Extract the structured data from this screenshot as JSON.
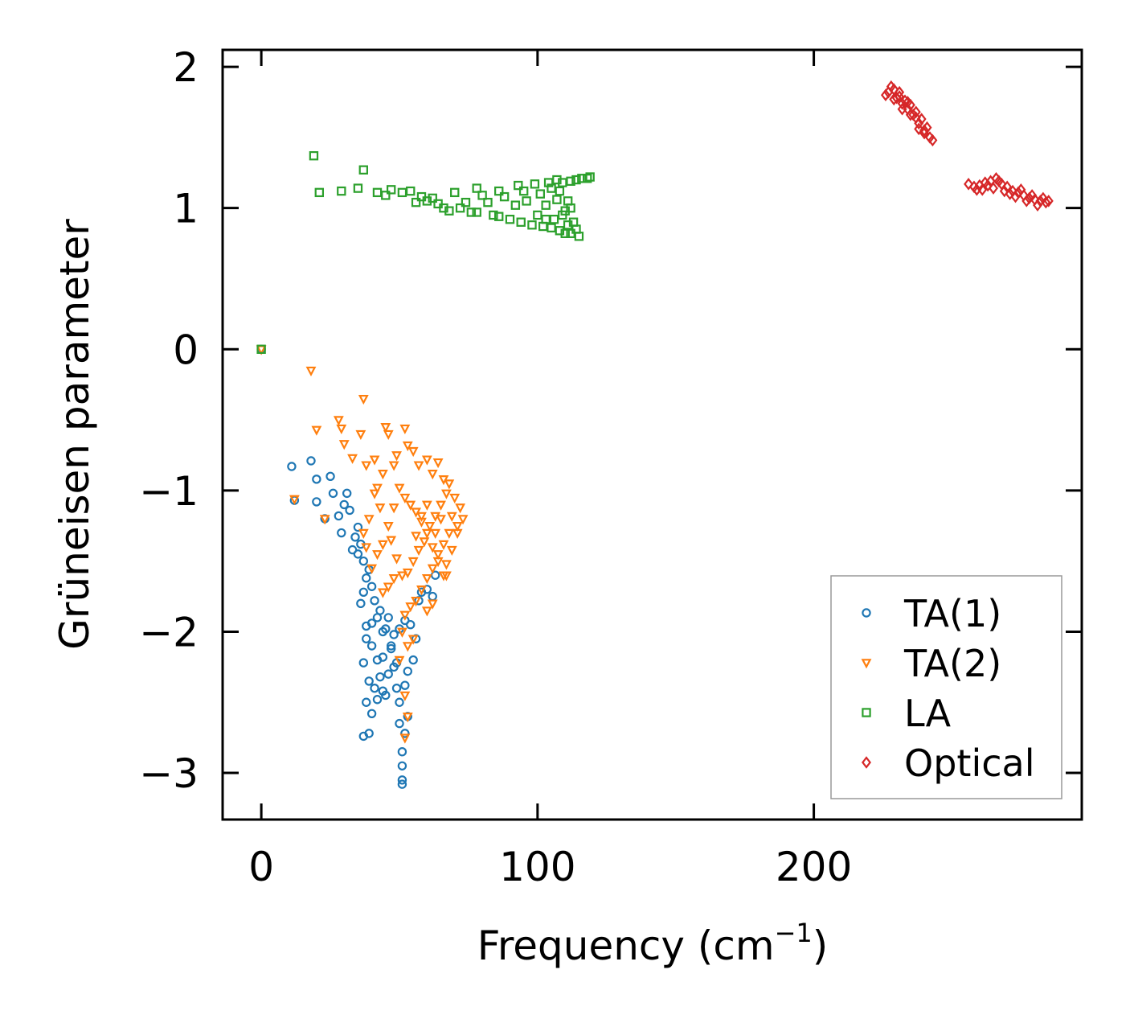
{
  "chart_data": {
    "type": "scatter",
    "title": "",
    "xlabel": "Frequency (cm",
    "xlabel_exponent": "−1",
    "xlabel_close": ")",
    "ylabel": "Grüneisen parameter",
    "xlim": [
      -14,
      297
    ],
    "ylim": [
      -3.33,
      2.12
    ],
    "xticks": [
      0,
      100,
      200
    ],
    "xtick_labels": [
      "0",
      "100",
      "200"
    ],
    "yticks": [
      -3,
      -2,
      -1,
      0,
      1,
      2
    ],
    "ytick_labels": [
      "−3",
      "−2",
      "−1",
      "0",
      "1",
      "2"
    ],
    "legend_position": "lower-right",
    "series": [
      {
        "name": "TA(1)",
        "marker": "circle",
        "color": "#1f77b4",
        "points": [
          [
            0,
            0
          ],
          [
            11,
            -0.83
          ],
          [
            12,
            -1.07
          ],
          [
            18,
            -0.79
          ],
          [
            20,
            -0.92
          ],
          [
            20,
            -1.08
          ],
          [
            23,
            -1.2
          ],
          [
            25,
            -0.9
          ],
          [
            26,
            -1.02
          ],
          [
            28,
            -1.18
          ],
          [
            29,
            -1.3
          ],
          [
            30,
            -1.1
          ],
          [
            31,
            -1.02
          ],
          [
            32,
            -1.14
          ],
          [
            33,
            -1.42
          ],
          [
            34,
            -1.33
          ],
          [
            35,
            -1.26
          ],
          [
            36,
            -1.38
          ],
          [
            35,
            -1.45
          ],
          [
            37,
            -1.5
          ],
          [
            38,
            -1.62
          ],
          [
            37,
            -1.72
          ],
          [
            39,
            -1.56
          ],
          [
            40,
            -1.68
          ],
          [
            36,
            -1.8
          ],
          [
            38,
            -1.96
          ],
          [
            40,
            -1.94
          ],
          [
            42,
            -1.9
          ],
          [
            38,
            -2.05
          ],
          [
            40,
            -2.1
          ],
          [
            42,
            -2.2
          ],
          [
            37,
            -2.22
          ],
          [
            39,
            -2.35
          ],
          [
            41,
            -2.4
          ],
          [
            43,
            -2.32
          ],
          [
            38,
            -2.5
          ],
          [
            40,
            -2.58
          ],
          [
            39,
            -2.72
          ],
          [
            37,
            -2.74
          ],
          [
            44,
            -2.18
          ],
          [
            46,
            -2.3
          ],
          [
            45,
            -2.45
          ],
          [
            47,
            -2.1
          ],
          [
            48,
            -2.25
          ],
          [
            49,
            -2.4
          ],
          [
            50,
            -2.5
          ],
          [
            52,
            -2.38
          ],
          [
            53,
            -2.28
          ],
          [
            48,
            -2.02
          ],
          [
            50,
            -1.98
          ],
          [
            52,
            -1.92
          ],
          [
            54,
            -1.95
          ],
          [
            56,
            -2.05
          ],
          [
            55,
            -2.2
          ],
          [
            50,
            -2.65
          ],
          [
            51,
            -2.85
          ],
          [
            51,
            -2.95
          ],
          [
            51,
            -3.05
          ],
          [
            51,
            -3.08
          ],
          [
            52,
            -2.72
          ],
          [
            53,
            -2.6
          ],
          [
            58,
            -1.72
          ],
          [
            60,
            -1.7
          ],
          [
            62,
            -1.75
          ],
          [
            63,
            -1.6
          ],
          [
            57,
            -1.78
          ],
          [
            44,
            -2.0
          ],
          [
            46,
            -1.9
          ],
          [
            41,
            -1.78
          ],
          [
            43,
            -1.85
          ],
          [
            45,
            -1.98
          ],
          [
            47,
            -2.12
          ],
          [
            49,
            -2.22
          ],
          [
            44,
            -2.42
          ],
          [
            42,
            -2.48
          ]
        ]
      },
      {
        "name": "TA(2)",
        "marker": "triangle-down",
        "color": "#ff7f0e",
        "points": [
          [
            0,
            0
          ],
          [
            12,
            -1.06
          ],
          [
            18,
            -0.15
          ],
          [
            20,
            -0.57
          ],
          [
            23,
            -1.2
          ],
          [
            28,
            -0.5
          ],
          [
            29,
            -0.56
          ],
          [
            30,
            -0.67
          ],
          [
            33,
            -0.77
          ],
          [
            36,
            -0.6
          ],
          [
            37,
            -0.35
          ],
          [
            38,
            -0.82
          ],
          [
            41,
            -0.78
          ],
          [
            42,
            -0.98
          ],
          [
            44,
            -0.88
          ],
          [
            45,
            -0.55
          ],
          [
            46,
            -0.6
          ],
          [
            48,
            -0.82
          ],
          [
            49,
            -0.75
          ],
          [
            52,
            -0.56
          ],
          [
            53,
            -0.68
          ],
          [
            55,
            -0.72
          ],
          [
            57,
            -0.82
          ],
          [
            60,
            -0.78
          ],
          [
            62,
            -0.88
          ],
          [
            64,
            -0.8
          ],
          [
            66,
            -0.92
          ],
          [
            68,
            -0.95
          ],
          [
            70,
            -1.05
          ],
          [
            72,
            -1.12
          ],
          [
            73,
            -1.2
          ],
          [
            71,
            -1.3
          ],
          [
            69,
            -1.42
          ],
          [
            67,
            -1.52
          ],
          [
            66,
            -1.6
          ],
          [
            64,
            -1.5
          ],
          [
            62,
            -1.4
          ],
          [
            60,
            -1.3
          ],
          [
            58,
            -1.22
          ],
          [
            56,
            -1.15
          ],
          [
            54,
            -1.1
          ],
          [
            52,
            -1.05
          ],
          [
            50,
            -0.98
          ],
          [
            48,
            -1.12
          ],
          [
            46,
            -1.25
          ],
          [
            44,
            -1.38
          ],
          [
            42,
            -1.45
          ],
          [
            40,
            -1.55
          ],
          [
            38,
            -1.4
          ],
          [
            37,
            -1.3
          ],
          [
            39,
            -1.2
          ],
          [
            41,
            -1.02
          ],
          [
            43,
            -1.12
          ],
          [
            47,
            -1.35
          ],
          [
            49,
            -1.48
          ],
          [
            51,
            -1.6
          ],
          [
            53,
            -1.58
          ],
          [
            55,
            -1.5
          ],
          [
            57,
            -1.42
          ],
          [
            59,
            -1.36
          ],
          [
            61,
            -1.25
          ],
          [
            63,
            -1.18
          ],
          [
            65,
            -1.1
          ],
          [
            67,
            -1.02
          ],
          [
            69,
            -1.18
          ],
          [
            71,
            -1.25
          ],
          [
            68,
            -1.3
          ],
          [
            66,
            -1.38
          ],
          [
            64,
            -1.45
          ],
          [
            62,
            -1.55
          ],
          [
            60,
            -1.62
          ],
          [
            58,
            -1.7
          ],
          [
            56,
            -1.78
          ],
          [
            54,
            -1.82
          ],
          [
            52,
            -1.88
          ],
          [
            55,
            -2.05
          ],
          [
            53,
            -2.1
          ],
          [
            51,
            -2.0
          ],
          [
            50,
            -2.2
          ],
          [
            52,
            -2.45
          ],
          [
            53,
            -2.6
          ],
          [
            52,
            -2.75
          ],
          [
            44,
            -1.72
          ],
          [
            46,
            -1.68
          ],
          [
            48,
            -1.62
          ],
          [
            60,
            -1.85
          ],
          [
            62,
            -1.8
          ],
          [
            65,
            -1.2
          ],
          [
            67,
            -1.6
          ],
          [
            63,
            -1.3
          ],
          [
            56,
            -1.32
          ],
          [
            58,
            -1.18
          ],
          [
            60,
            -1.1
          ]
        ]
      },
      {
        "name": "LA",
        "marker": "square",
        "color": "#2ca02c",
        "points": [
          [
            0,
            0
          ],
          [
            19,
            1.37
          ],
          [
            21,
            1.11
          ],
          [
            29,
            1.12
          ],
          [
            35,
            1.14
          ],
          [
            37,
            1.27
          ],
          [
            42,
            1.11
          ],
          [
            45,
            1.09
          ],
          [
            47,
            1.13
          ],
          [
            51,
            1.11
          ],
          [
            54,
            1.12
          ],
          [
            56,
            1.04
          ],
          [
            58,
            1.08
          ],
          [
            60,
            1.05
          ],
          [
            62,
            1.07
          ],
          [
            64,
            1.03
          ],
          [
            66,
            1.0
          ],
          [
            68,
            0.98
          ],
          [
            70,
            1.11
          ],
          [
            72,
            1.0
          ],
          [
            74,
            1.04
          ],
          [
            76,
            0.97
          ],
          [
            78,
            0.97
          ],
          [
            78,
            1.14
          ],
          [
            80,
            1.09
          ],
          [
            82,
            1.04
          ],
          [
            84,
            0.95
          ],
          [
            86,
            0.94
          ],
          [
            86,
            1.12
          ],
          [
            88,
            1.08
          ],
          [
            90,
            0.92
          ],
          [
            92,
            1.02
          ],
          [
            93,
            1.16
          ],
          [
            94,
            0.9
          ],
          [
            95,
            1.12
          ],
          [
            96,
            1.05
          ],
          [
            98,
            0.88
          ],
          [
            99,
            1.17
          ],
          [
            100,
            0.95
          ],
          [
            101,
            1.1
          ],
          [
            102,
            0.87
          ],
          [
            103,
            1.02
          ],
          [
            104,
            1.18
          ],
          [
            105,
            0.86
          ],
          [
            106,
            0.92
          ],
          [
            107,
            1.06
          ],
          [
            108,
            1.12
          ],
          [
            108,
            0.84
          ],
          [
            110,
            0.82
          ],
          [
            110,
            0.98
          ],
          [
            111,
            1.05
          ],
          [
            112,
            0.82
          ],
          [
            112,
            1.19
          ],
          [
            113,
            0.9
          ],
          [
            114,
            1.2
          ],
          [
            115,
            0.8
          ],
          [
            116,
            1.21
          ],
          [
            118,
            1.21
          ],
          [
            119,
            1.22
          ],
          [
            111,
            0.88
          ],
          [
            109,
            0.95
          ],
          [
            107,
            1.2
          ],
          [
            105,
            1.14
          ],
          [
            103,
            0.92
          ],
          [
            109,
            1.18
          ],
          [
            112,
            1.0
          ],
          [
            114,
            0.85
          ]
        ]
      },
      {
        "name": "Optical",
        "marker": "diamond",
        "color": "#d62728",
        "points": [
          [
            227,
            1.82
          ],
          [
            228,
            1.86
          ],
          [
            229,
            1.84
          ],
          [
            230,
            1.78
          ],
          [
            231,
            1.82
          ],
          [
            232,
            1.74
          ],
          [
            233,
            1.76
          ],
          [
            234,
            1.7
          ],
          [
            235,
            1.73
          ],
          [
            236,
            1.66
          ],
          [
            237,
            1.68
          ],
          [
            238,
            1.6
          ],
          [
            239,
            1.63
          ],
          [
            240,
            1.55
          ],
          [
            241,
            1.57
          ],
          [
            242,
            1.5
          ],
          [
            243,
            1.48
          ],
          [
            231,
            1.79
          ],
          [
            234,
            1.75
          ],
          [
            237,
            1.64
          ],
          [
            240,
            1.53
          ],
          [
            226,
            1.8
          ],
          [
            229,
            1.77
          ],
          [
            232,
            1.7
          ],
          [
            235,
            1.66
          ],
          [
            238,
            1.56
          ],
          [
            256,
            1.17
          ],
          [
            258,
            1.15
          ],
          [
            260,
            1.16
          ],
          [
            262,
            1.18
          ],
          [
            264,
            1.19
          ],
          [
            266,
            1.21
          ],
          [
            268,
            1.17
          ],
          [
            270,
            1.15
          ],
          [
            272,
            1.12
          ],
          [
            274,
            1.11
          ],
          [
            276,
            1.09
          ],
          [
            278,
            1.07
          ],
          [
            280,
            1.06
          ],
          [
            282,
            1.05
          ],
          [
            284,
            1.04
          ],
          [
            261,
            1.13
          ],
          [
            265,
            1.14
          ],
          [
            269,
            1.12
          ],
          [
            273,
            1.08
          ],
          [
            277,
            1.05
          ],
          [
            281,
            1.02
          ],
          [
            263,
            1.16
          ],
          [
            267,
            1.19
          ],
          [
            271,
            1.1
          ],
          [
            275,
            1.13
          ],
          [
            279,
            1.09
          ],
          [
            283,
            1.07
          ],
          [
            259,
            1.13
          ],
          [
            285,
            1.05
          ]
        ]
      }
    ]
  }
}
